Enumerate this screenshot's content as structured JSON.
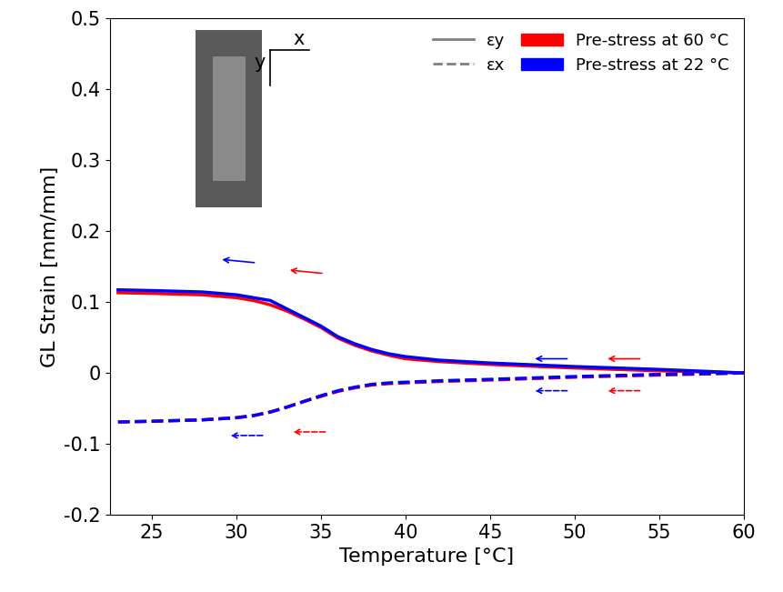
{
  "chart_data": {
    "type": "line",
    "x_label": "Temperature [°C]",
    "y_label": "GL Strain [mm/mm]",
    "x": [
      23,
      25,
      28,
      30,
      31,
      32,
      33,
      34,
      35,
      36,
      37,
      38,
      39,
      40,
      42,
      45,
      50,
      55,
      60
    ],
    "series": [
      {
        "name": "Pre-stress at 60 °C",
        "strain": "εy",
        "color": "#ff0000",
        "line_style": "solid",
        "values": [
          0.113,
          0.112,
          0.11,
          0.106,
          0.102,
          0.096,
          0.087,
          0.076,
          0.064,
          0.049,
          0.039,
          0.031,
          0.025,
          0.02,
          0.016,
          0.012,
          0.007,
          0.003,
          0.0
        ]
      },
      {
        "name": "Pre-stress at 22 °C",
        "strain": "εy",
        "color": "#0000ff",
        "line_style": "solid",
        "values": [
          0.117,
          0.116,
          0.114,
          0.11,
          0.106,
          0.102,
          0.09,
          0.078,
          0.066,
          0.051,
          0.041,
          0.033,
          0.027,
          0.023,
          0.018,
          0.014,
          0.009,
          0.005,
          0.0
        ]
      },
      {
        "name": "Pre-stress at 60 °C",
        "strain": "εx",
        "color": "#ff0000",
        "line_style": "dashed",
        "values": [
          -0.069,
          -0.068,
          -0.066,
          -0.063,
          -0.06,
          -0.055,
          -0.048,
          -0.04,
          -0.033,
          -0.026,
          -0.021,
          -0.017,
          -0.015,
          -0.014,
          -0.012,
          -0.01,
          -0.006,
          -0.003,
          0.0
        ]
      },
      {
        "name": "Pre-stress at 22 °C",
        "strain": "εx",
        "color": "#0000ff",
        "line_style": "dashed",
        "values": [
          -0.069,
          -0.068,
          -0.066,
          -0.063,
          -0.06,
          -0.055,
          -0.048,
          -0.04,
          -0.032,
          -0.025,
          -0.02,
          -0.016,
          -0.014,
          -0.013,
          -0.011,
          -0.009,
          -0.005,
          -0.002,
          0.0
        ]
      }
    ],
    "inset_axis_labels": [
      "x",
      "y"
    ],
    "xlim": [
      22.5,
      60
    ],
    "xticks": [
      25,
      30,
      35,
      40,
      45,
      50,
      55,
      60
    ],
    "ylim": [
      -0.2,
      0.5
    ],
    "yticks": [
      -0.2,
      -0.1,
      0,
      0.1,
      0.2,
      0.3,
      0.4,
      0.5
    ],
    "legend": "upper right",
    "grid": false
  }
}
